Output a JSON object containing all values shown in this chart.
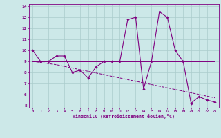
{
  "title": "",
  "xlabel": "Windchill (Refroidissement éolien,°C)",
  "ylabel": "",
  "background_color": "#cce8e8",
  "line_color": "#800080",
  "grid_color": "#aacccc",
  "xlim": [
    -0.5,
    23.5
  ],
  "ylim": [
    4.8,
    14.2
  ],
  "xticks": [
    0,
    1,
    2,
    3,
    4,
    5,
    6,
    7,
    8,
    9,
    10,
    11,
    12,
    13,
    14,
    15,
    16,
    17,
    18,
    19,
    20,
    21,
    22,
    23
  ],
  "yticks": [
    5,
    6,
    7,
    8,
    9,
    10,
    11,
    12,
    13,
    14
  ],
  "series": [
    {
      "x": [
        0,
        1,
        2,
        3,
        4,
        5,
        6,
        7,
        8,
        9,
        10,
        11,
        12,
        13,
        14,
        15,
        16,
        17,
        18,
        19,
        20,
        21,
        22,
        23
      ],
      "y": [
        10,
        9,
        9,
        9.5,
        9.5,
        8,
        8.2,
        7.5,
        8.5,
        9,
        9,
        9,
        12.8,
        13.0,
        6.5,
        9,
        13.5,
        13.0,
        10,
        9,
        5.2,
        5.8,
        5.5,
        5.3
      ],
      "color": "#800080",
      "linewidth": 0.8,
      "markersize": 1.8
    },
    {
      "x": [
        0,
        1,
        2,
        3,
        4,
        5,
        6,
        7,
        8,
        9,
        10,
        11,
        12,
        13,
        14,
        15,
        16,
        17,
        18,
        19,
        20,
        21,
        22,
        23
      ],
      "y": [
        9.0,
        8.9,
        8.8,
        8.7,
        8.55,
        8.4,
        8.25,
        8.1,
        7.95,
        7.8,
        7.65,
        7.5,
        7.35,
        7.2,
        7.05,
        6.9,
        6.75,
        6.6,
        6.45,
        6.3,
        6.15,
        6.0,
        5.85,
        5.7
      ],
      "color": "#800080",
      "linewidth": 0.7,
      "linestyle": "--"
    },
    {
      "x": [
        0,
        23
      ],
      "y": [
        9.0,
        9.0
      ],
      "color": "#800080",
      "linewidth": 0.7,
      "linestyle": "-"
    }
  ]
}
